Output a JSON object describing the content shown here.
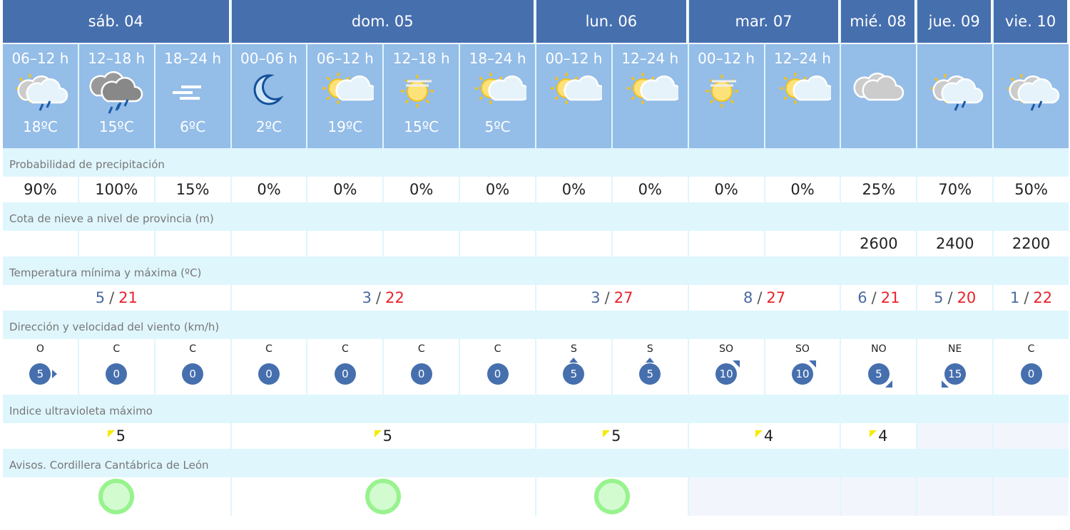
{
  "days": [
    {
      "label": "sáb. 04",
      "span": 3
    },
    {
      "label": "dom. 05",
      "span": 4
    },
    {
      "label": "lun. 06",
      "span": 2
    },
    {
      "label": "mar. 07",
      "span": 2
    },
    {
      "label": "mié. 08",
      "span": 1
    },
    {
      "label": "jue. 09",
      "span": 1
    },
    {
      "label": "vie. 10",
      "span": 1
    }
  ],
  "periods": [
    {
      "hours": "06–12 h",
      "icon": "sun-cloud-rain",
      "temp": "18ºC"
    },
    {
      "hours": "12–18 h",
      "icon": "heavy-cloud-rain",
      "temp": "15ºC"
    },
    {
      "hours": "18–24 h",
      "icon": "fog",
      "temp": "6ºC"
    },
    {
      "hours": "00–06 h",
      "icon": "moon",
      "temp": "2ºC"
    },
    {
      "hours": "06–12 h",
      "icon": "sun-cloud",
      "temp": "19ºC"
    },
    {
      "hours": "12–18 h",
      "icon": "sun-haze",
      "temp": "15ºC"
    },
    {
      "hours": "18–24 h",
      "icon": "sun-cloud",
      "temp": "5ºC"
    },
    {
      "hours": "00–12 h",
      "icon": "sun-cloud",
      "temp": ""
    },
    {
      "hours": "12–24 h",
      "icon": "sun-cloud",
      "temp": ""
    },
    {
      "hours": "00–12 h",
      "icon": "sun-haze",
      "temp": ""
    },
    {
      "hours": "12–24 h",
      "icon": "sun-cloud",
      "temp": ""
    },
    {
      "hours": "",
      "icon": "cloud",
      "temp": ""
    },
    {
      "hours": "",
      "icon": "sun-cloud-rain",
      "temp": ""
    },
    {
      "hours": "",
      "icon": "sun-cloud-rain",
      "temp": ""
    }
  ],
  "labels": {
    "precip": "Probabilidad de precipitación",
    "snow": "Cota de nieve a nivel de provincia (m)",
    "temp": "Temperatura mínima y máxima (ºC)",
    "wind": "Dirección y velocidad del viento (km/h)",
    "uv": "Indice ultravioleta máximo",
    "avisos": "Avisos. Cordillera Cantábrica de León"
  },
  "precip": [
    "90%",
    "100%",
    "15%",
    "0%",
    "0%",
    "0%",
    "0%",
    "0%",
    "0%",
    "0%",
    "0%",
    "25%",
    "70%",
    "50%"
  ],
  "snow": [
    "",
    "",
    "",
    "",
    "",
    "",
    "",
    "",
    "",
    "",
    "",
    "2600",
    "2400",
    "2200"
  ],
  "minmax": [
    {
      "min": "5",
      "max": "21"
    },
    {
      "min": "3",
      "max": "22"
    },
    {
      "min": "3",
      "max": "27"
    },
    {
      "min": "8",
      "max": "27"
    },
    {
      "min": "6",
      "max": "21"
    },
    {
      "min": "5",
      "max": "20"
    },
    {
      "min": "1",
      "max": "22"
    }
  ],
  "separator": "/",
  "wind": [
    {
      "dir": "O",
      "speed": "5"
    },
    {
      "dir": "C",
      "speed": "0"
    },
    {
      "dir": "C",
      "speed": "0"
    },
    {
      "dir": "C",
      "speed": "0"
    },
    {
      "dir": "C",
      "speed": "0"
    },
    {
      "dir": "C",
      "speed": "0"
    },
    {
      "dir": "C",
      "speed": "0"
    },
    {
      "dir": "S",
      "speed": "5"
    },
    {
      "dir": "S",
      "speed": "5"
    },
    {
      "dir": "SO",
      "speed": "10"
    },
    {
      "dir": "SO",
      "speed": "10"
    },
    {
      "dir": "NO",
      "speed": "5"
    },
    {
      "dir": "NE",
      "speed": "15"
    },
    {
      "dir": "C",
      "speed": "0"
    }
  ],
  "uv": [
    "5",
    "5",
    "5",
    "4",
    "4",
    "",
    ""
  ],
  "avisos": [
    {
      "level": "green"
    },
    {
      "level": "green"
    },
    {
      "level": "green"
    },
    {
      "level": ""
    },
    {
      "level": ""
    },
    {
      "level": ""
    },
    {
      "level": ""
    }
  ],
  "colors": {
    "header": "#466fae",
    "period": "#94bde8",
    "min": "#4a6aa0",
    "max": "#e8212a",
    "uv_flag": "#f5ea00",
    "aviso_green": "#98f38f"
  }
}
